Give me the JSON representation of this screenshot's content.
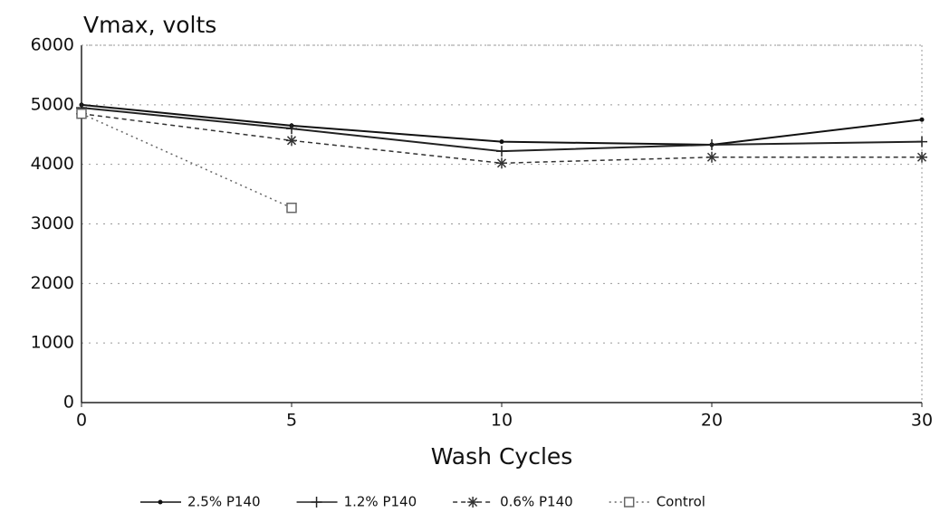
{
  "chart_data": {
    "type": "line",
    "title": "Vmax, volts",
    "x_label": "Wash Cycles",
    "categories": [
      "0",
      "5",
      "10",
      "20",
      "30"
    ],
    "series": [
      {
        "name": "2.5% P140",
        "color": "#111111",
        "dash": "solid",
        "marker": "dot",
        "values": [
          5000,
          4650,
          4380,
          4330,
          4750
        ]
      },
      {
        "name": "1.2% P140",
        "color": "#222222",
        "dash": "solid",
        "marker": "plus",
        "values": [
          4950,
          4600,
          4220,
          4330,
          4380
        ]
      },
      {
        "name": "0.6% P140",
        "color": "#333333",
        "dash": "dashed",
        "marker": "asterisk",
        "values": [
          4850,
          4400,
          4020,
          4120,
          4120
        ]
      },
      {
        "name": "Control",
        "color": "#666666",
        "dash": "dotted",
        "marker": "square",
        "values": [
          4850,
          3270,
          null,
          null,
          null
        ]
      }
    ],
    "ylim": [
      0,
      6000
    ],
    "yticks": [
      0,
      1000,
      2000,
      3000,
      4000,
      5000,
      6000
    ],
    "grid": true,
    "legend": "bottom"
  }
}
